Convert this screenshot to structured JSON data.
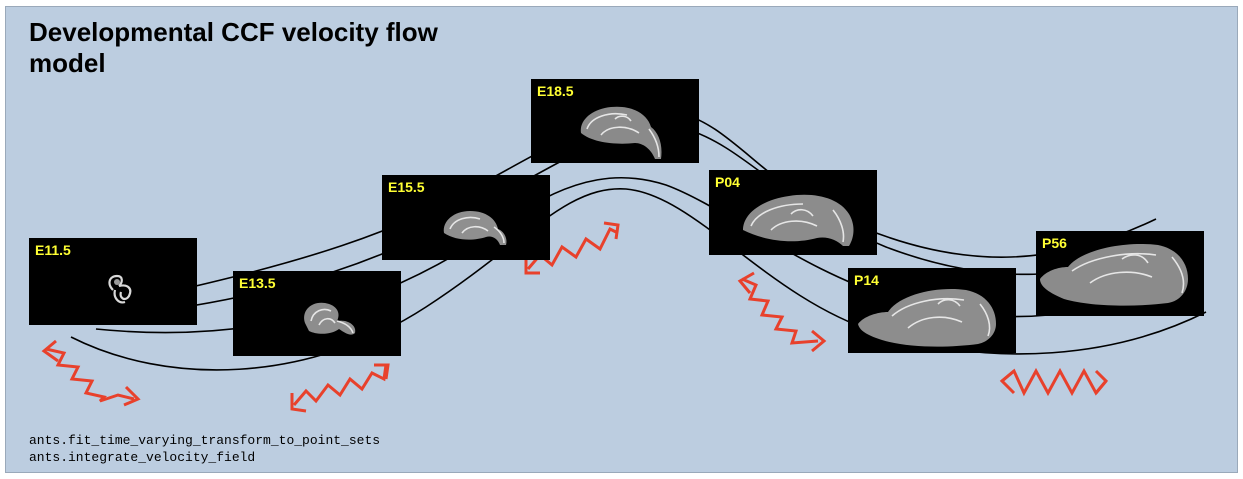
{
  "title": "Developmental CCF velocity flow model",
  "timepoints": [
    {
      "label": "E11.5"
    },
    {
      "label": "E13.5"
    },
    {
      "label": "E15.5"
    },
    {
      "label": "E18.5"
    },
    {
      "label": "P04"
    },
    {
      "label": "P14"
    },
    {
      "label": "P56"
    }
  ],
  "code_lines": [
    "ants.fit_time_varying_transform_to_point_sets",
    "ants.integrate_velocity_field"
  ],
  "colors": {
    "background": "#bccde0",
    "panel": "#000000",
    "label": "#ffff33",
    "arrow": "#e8412c",
    "flow_line": "#000000"
  }
}
